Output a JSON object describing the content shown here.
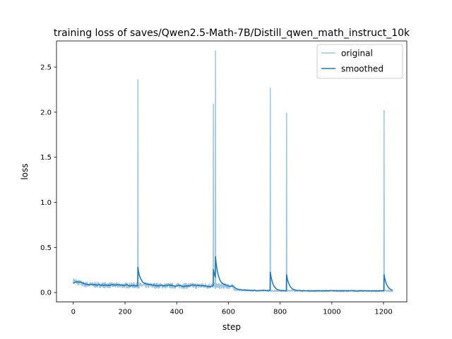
{
  "chart_data": {
    "type": "line",
    "title": "training loss of saves/Qwen2.5-Math-7B/Distill_qwen_math_instruct_10k",
    "xlabel": "step",
    "ylabel": "loss",
    "xlim": [
      -65,
      1290
    ],
    "ylim": [
      -0.105,
      2.79
    ],
    "xticks": [
      0,
      200,
      400,
      600,
      800,
      1000,
      1200
    ],
    "yticks": [
      0.0,
      0.5,
      1.0,
      1.5,
      2.0,
      2.5
    ],
    "xtick_labels": [
      "0",
      "200",
      "400",
      "600",
      "800",
      "1000",
      "1200"
    ],
    "ytick_labels": [
      "0.0",
      "0.5",
      "1.0",
      "1.5",
      "2.0",
      "2.5"
    ],
    "grid": false,
    "legend": {
      "position": "top-right",
      "entries": [
        "original",
        "smoothed"
      ]
    },
    "colors": {
      "original": "#9ec5e1",
      "smoothed": "#1f77b4"
    },
    "baseline": {
      "x": [
        0,
        20,
        40,
        80,
        120,
        160,
        200,
        240,
        300,
        350,
        400,
        450,
        500,
        540,
        580,
        612,
        625,
        660,
        700,
        760,
        800,
        860,
        900,
        1000,
        1100,
        1200,
        1235
      ],
      "y": [
        0.13,
        0.11,
        0.09,
        0.085,
        0.082,
        0.08,
        0.08,
        0.078,
        0.078,
        0.076,
        0.075,
        0.075,
        0.074,
        0.074,
        0.072,
        0.07,
        0.03,
        0.025,
        0.022,
        0.02,
        0.02,
        0.02,
        0.019,
        0.019,
        0.018,
        0.018,
        0.018
      ]
    },
    "spikes": [
      {
        "x": 250,
        "y": 2.36
      },
      {
        "x": 542,
        "y": 2.09
      },
      {
        "x": 550,
        "y": 2.68
      },
      {
        "x": 762,
        "y": 2.27
      },
      {
        "x": 825,
        "y": 1.99
      },
      {
        "x": 1202,
        "y": 2.02
      }
    ],
    "series": [
      {
        "name": "original",
        "x": [
          0,
          1235
        ]
      },
      {
        "name": "smoothed",
        "x": [
          0,
          1235
        ]
      }
    ]
  }
}
